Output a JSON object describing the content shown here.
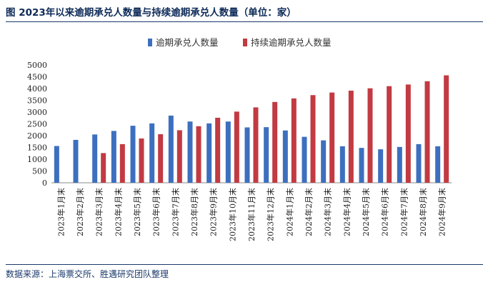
{
  "header": {
    "title": "图 2023年以来逾期承兑人数量与持续逾期承兑人数量（单位：家）"
  },
  "footer": {
    "source": "数据来源：上海票交所、胜遇研究团队整理"
  },
  "colors": {
    "series1": "#3d6fbf",
    "series2": "#c23a42",
    "rule": "#1b3a6b"
  },
  "chart_data": {
    "type": "bar",
    "title": "图 2023年以来逾期承兑人数量与持续逾期承兑人数量（单位：家）",
    "xlabel": "",
    "ylabel": "",
    "ylim": [
      0,
      5000
    ],
    "yticks": [
      0,
      500,
      1000,
      1500,
      2000,
      2500,
      3000,
      3500,
      4000,
      4500,
      5000
    ],
    "legend": "top-center",
    "grid": false,
    "categories": [
      "2023年1月末",
      "2023年2月末",
      "2023年3月末",
      "2023年4月末",
      "2023年5月末",
      "2023年6月末",
      "2023年7月末",
      "2023年8月末",
      "2023年9月末",
      "2023年10月末",
      "2023年11月末",
      "2023年12月末",
      "2024年1月末",
      "2024年2月末",
      "2024年3月末",
      "2024年4月末",
      "2024年5月末",
      "2024年6月末",
      "2024年7月末",
      "2024年8月末",
      "2024年9月末"
    ],
    "series": [
      {
        "name": "逾期承兑人数量",
        "values": [
          1560,
          1820,
          2050,
          2200,
          2420,
          2520,
          2850,
          2600,
          2520,
          2600,
          2350,
          2360,
          2220,
          1950,
          1800,
          1550,
          1480,
          1420,
          1520,
          1640,
          1550
        ]
      },
      {
        "name": "持续逾期承兑人数量",
        "values": [
          null,
          null,
          1260,
          1640,
          1880,
          2060,
          2230,
          2400,
          2760,
          3020,
          3200,
          3430,
          3580,
          3720,
          3830,
          3910,
          4010,
          4100,
          4170,
          4310,
          4560
        ]
      }
    ]
  }
}
